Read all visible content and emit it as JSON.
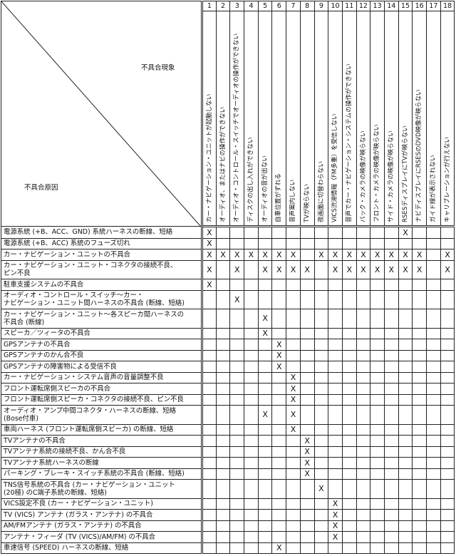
{
  "corner": {
    "symptom_label": "不具合現象",
    "cause_label": "不具合原因"
  },
  "columns": [
    {
      "num": "1",
      "label": "カー・ナビゲーション・ユニットが起動しない"
    },
    {
      "num": "2",
      "label": "オーディオ、またはナビの操作ができない"
    },
    {
      "num": "3",
      "label": "オーディオ・コントロール・スイッチでオーディオの操作ができない"
    },
    {
      "num": "4",
      "label": "ディスクの出し入れができない"
    },
    {
      "num": "5",
      "label": "オーディオの音が出ない"
    },
    {
      "num": "6",
      "label": "自車位置がずれる"
    },
    {
      "num": "7",
      "label": "音声案内しない"
    },
    {
      "num": "8",
      "label": "TVが映らない"
    },
    {
      "num": "9",
      "label": "夜画面に切替わらない"
    },
    {
      "num": "10",
      "label": "VICS渋滞情報（FM多重）を受信しない"
    },
    {
      "num": "11",
      "label": "音声でカー・ナビゲーション・システムの操作ができない"
    },
    {
      "num": "12",
      "label": "バック・カメラの映像が映らない"
    },
    {
      "num": "13",
      "label": "フロント・カメラの映像が映らない"
    },
    {
      "num": "14",
      "label": "サイド・カメラの映像が映らない"
    },
    {
      "num": "15",
      "label": "RSESディスプレイにTVが映らない"
    },
    {
      "num": "16",
      "label": "ナビディスプレイにRSESのDVD映像が映らない"
    },
    {
      "num": "17",
      "label": "ガイド線が表示されない"
    },
    {
      "num": "18",
      "label": "キャリブレーションが行えない"
    }
  ],
  "mark": "X",
  "rows": [
    {
      "cause": "電源系統 (+B、ACC、GND) 系統ハーネスの断線、短絡",
      "marks": [
        1,
        15
      ]
    },
    {
      "cause": "電源系統 (+B、ACC) 系統のフューズ切れ",
      "marks": [
        1
      ]
    },
    {
      "cause": "カー・ナビゲーション・ユニットの不具合",
      "marks": [
        1,
        2,
        3,
        4,
        5,
        6,
        7,
        9,
        10,
        11,
        12,
        13,
        14,
        15,
        16,
        18
      ]
    },
    {
      "cause": "カー・ナビゲーション・ユニット・コネクタの接続不良、\nピン不良",
      "marks": [
        1,
        3,
        5,
        6,
        7,
        8,
        10,
        11,
        12,
        13,
        14,
        15,
        16,
        18
      ]
    },
    {
      "cause": "駐車支援システムの不具合",
      "marks": [
        1
      ]
    },
    {
      "cause": "オーディオ・コントロール・スイッチ～カー・\nナビゲーション・ユニット間ハーネスの不具合 (断線、短絡)",
      "marks": [
        3
      ]
    },
    {
      "cause": "カー・ナビゲーション・ユニット～各スピーカ間ハーネスの\n不具合 (断線)",
      "marks": [
        5
      ]
    },
    {
      "cause": "スピーカ／ツィータの不具合",
      "marks": [
        5
      ]
    },
    {
      "cause": "GPSアンテナの不具合",
      "marks": [
        6
      ]
    },
    {
      "cause": "GPSアンテナのかん合不良",
      "marks": [
        6
      ]
    },
    {
      "cause": "GPSアンテナの障害物による受信不良",
      "marks": [
        6
      ]
    },
    {
      "cause": "カー・ナビゲーション・システム音声の音量調整不良",
      "marks": [
        7
      ]
    },
    {
      "cause": "フロント運転席側スピーカの不具合",
      "marks": [
        7
      ]
    },
    {
      "cause": "フロント運転席側スピーカ・コネクタの接続不良、ピン不良",
      "marks": [
        7
      ]
    },
    {
      "cause": "オーディオ・アンプ中間コネクタ・ハーネスの断線、短絡\n(Bose付車)",
      "marks": [
        5,
        7
      ]
    },
    {
      "cause": "車両ハーネス (フロント運転席側スピーカ) の断線、短絡",
      "marks": [
        7
      ]
    },
    {
      "cause": "TVアンテナの不具合",
      "marks": [
        8
      ]
    },
    {
      "cause": "TVアンテナ系統の接続不良、かん合不良",
      "marks": [
        8
      ]
    },
    {
      "cause": "TVアンテナ系統ハーネスの断線",
      "marks": [
        8
      ]
    },
    {
      "cause": "パーキング・ブレーキ・スイッチ系統の不具合 (断線、短絡)",
      "marks": [
        8
      ]
    },
    {
      "cause": "TNS信号系統の不具合 (カー・ナビゲーション・ユニット\n(20極) のC端子系統の断線、短絡)",
      "marks": [
        9
      ]
    },
    {
      "cause": "VICS設定不良 (カー・ナビゲーション・ユニット)",
      "marks": [
        10
      ]
    },
    {
      "cause": "TV (VICS) アンテナ (ガラス・アンテナ) の不具合",
      "marks": [
        10
      ]
    },
    {
      "cause": "AM/FMアンテナ (ガラス・アンテナ) の不具合",
      "marks": [
        10
      ]
    },
    {
      "cause": "アンテナ・フィーダ (TV (VICS)/AM/FM) の不具合",
      "marks": [
        10
      ]
    },
    {
      "cause": "車速信号 (SPEED) ハーネスの断線、短絡",
      "marks": [
        6
      ]
    }
  ]
}
